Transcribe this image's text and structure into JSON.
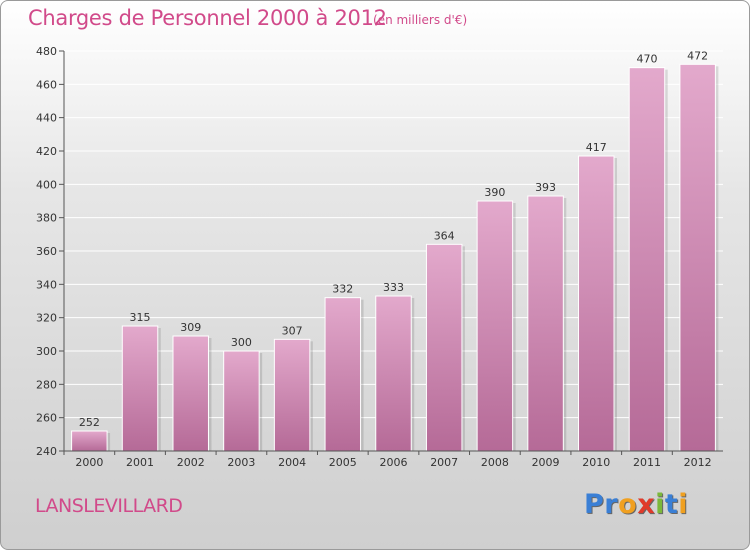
{
  "chart_data": {
    "type": "bar",
    "title": "Charges de Personnel 2000 à 2012",
    "subtitle": "(en milliers d'€)",
    "categories": [
      "2000",
      "2001",
      "2002",
      "2003",
      "2004",
      "2005",
      "2006",
      "2007",
      "2008",
      "2009",
      "2010",
      "2011",
      "2012"
    ],
    "values": [
      252,
      315,
      309,
      300,
      307,
      332,
      333,
      364,
      390,
      393,
      417,
      470,
      472
    ],
    "ylim": [
      240,
      480
    ],
    "yticks": [
      240,
      260,
      280,
      300,
      320,
      340,
      360,
      380,
      400,
      420,
      440,
      460,
      480
    ],
    "grid": true,
    "xlabel": "",
    "ylabel": "",
    "bar_color": "#d98ab8",
    "bar_color_top": "#e3a9cc",
    "bar_color_bottom": "#b56a97"
  },
  "footer": {
    "commune": "LANSLEVILLARD",
    "logo_letters": [
      {
        "char": "P",
        "color": "#3a7fd5"
      },
      {
        "char": "r",
        "color": "#3a7fd5"
      },
      {
        "char": "o",
        "color": "#f0a020"
      },
      {
        "char": "x",
        "color": "#e03a2a"
      },
      {
        "char": "i",
        "color": "#7bb83a"
      },
      {
        "char": "t",
        "color": "#3a7fd5"
      },
      {
        "char": "i",
        "color": "#f0a020"
      }
    ]
  },
  "colors": {
    "accent": "#d14a8a",
    "axis": "#555555",
    "grid": "#ffffff"
  }
}
